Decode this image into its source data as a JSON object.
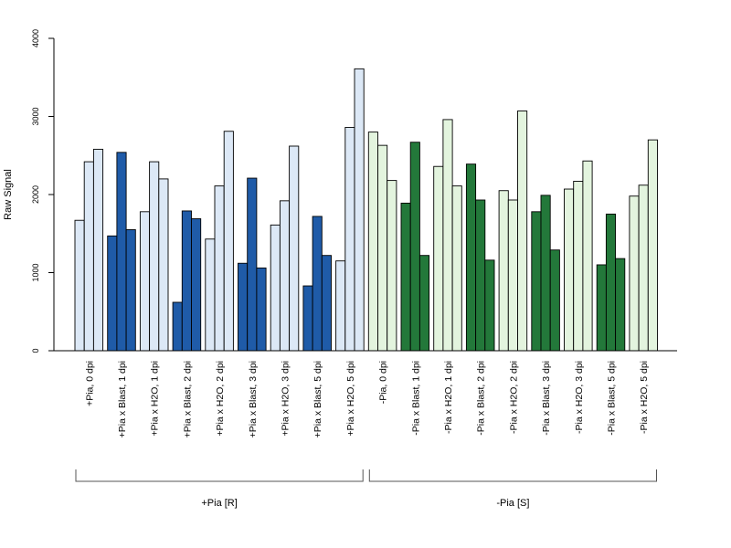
{
  "chart_data": {
    "type": "bar",
    "ylabel": "Raw Signal",
    "xlabel": "",
    "ylim": [
      0,
      4000
    ],
    "y_ticks": [
      0,
      1000,
      2000,
      3000,
      4000
    ],
    "bars_per_group": 3,
    "categories": [
      "+Pia, 0 dpi",
      "+Pia x Blast, 1 dpi",
      "+Pia x H2O, 1 dpi",
      "+Pia x Blast, 2 dpi",
      "+Pia x H2O, 2 dpi",
      "+Pia x Blast, 3 dpi",
      "+Pia x H2O, 3 dpi",
      "+Pia x Blast, 5 dpi",
      "+Pia x H2O, 5 dpi",
      "-Pia, 0 dpi",
      "-Pia x Blast, 1 dpi",
      "-Pia x H2O, 1 dpi",
      "-Pia x Blast, 2 dpi",
      "-Pia x H2O, 2 dpi",
      "-Pia x Blast, 3 dpi",
      "-Pia x H2O, 3 dpi",
      "-Pia x Blast, 5 dpi",
      "-Pia x H2O, 5 dpi"
    ],
    "values": [
      [
        1670,
        2420,
        2580
      ],
      [
        1470,
        2540,
        1550
      ],
      [
        1780,
        2420,
        2200
      ],
      [
        620,
        1790,
        1690
      ],
      [
        1430,
        2110,
        2810
      ],
      [
        1120,
        2210,
        1060
      ],
      [
        1610,
        1920,
        2620
      ],
      [
        830,
        1720,
        1220
      ],
      [
        1150,
        2860,
        3610
      ],
      [
        2800,
        2630,
        2180
      ],
      [
        1890,
        2670,
        1220
      ],
      [
        2360,
        2960,
        2110
      ],
      [
        2390,
        1930,
        1160
      ],
      [
        2050,
        1930,
        3070
      ],
      [
        1780,
        1990,
        1290
      ],
      [
        2070,
        2170,
        2430
      ],
      [
        1100,
        1750,
        1180
      ],
      [
        1980,
        2120,
        2700
      ]
    ],
    "bar_colors": [
      "#dce8f6",
      "#1f5ba8",
      "#dce8f6",
      "#1f5ba8",
      "#dce8f6",
      "#1f5ba8",
      "#dce8f6",
      "#1f5ba8",
      "#dce8f6",
      "#e3f4de",
      "#23783a",
      "#e3f4de",
      "#23783a",
      "#e3f4de",
      "#23783a",
      "#e3f4de",
      "#23783a",
      "#e3f4de"
    ],
    "groups": [
      {
        "label": "+Pia [R]",
        "start": 0,
        "end": 8
      },
      {
        "label": "-Pia [S]",
        "start": 9,
        "end": 17
      }
    ]
  }
}
